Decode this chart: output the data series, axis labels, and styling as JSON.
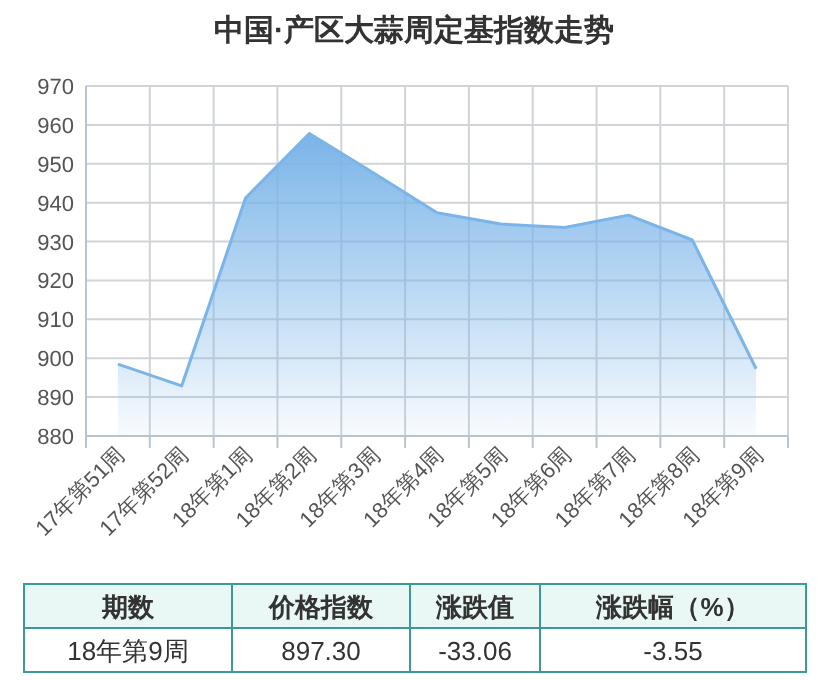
{
  "chart_data": {
    "type": "area",
    "title": "中国·产区大蒜周定基指数走势",
    "categories": [
      "17年第51周",
      "17年第52周",
      "18年第1周",
      "18年第2周",
      "18年第3周",
      "18年第4周",
      "18年第5周",
      "18年第6周",
      "18年第7周",
      "18年第8周",
      "18年第9周"
    ],
    "series": [
      {
        "color": "#7ab4e8",
        "values": [
          898.5,
          892.9,
          941.2,
          957.8,
          947.7,
          937.4,
          934.5,
          933.6,
          936.8,
          930.4,
          897.3
        ]
      }
    ],
    "ylim": [
      880,
      970
    ],
    "yticks": [
      880,
      890,
      900,
      910,
      920,
      930,
      940,
      950,
      960,
      970
    ],
    "grid": true,
    "marker": "none",
    "line_style": "solid",
    "annotations": [
      "期数",
      "价格指数",
      "涨跌值",
      "涨跌幅（%）",
      "18年第9周",
      "897.30",
      "-33.06",
      "-3.55"
    ]
  }
}
